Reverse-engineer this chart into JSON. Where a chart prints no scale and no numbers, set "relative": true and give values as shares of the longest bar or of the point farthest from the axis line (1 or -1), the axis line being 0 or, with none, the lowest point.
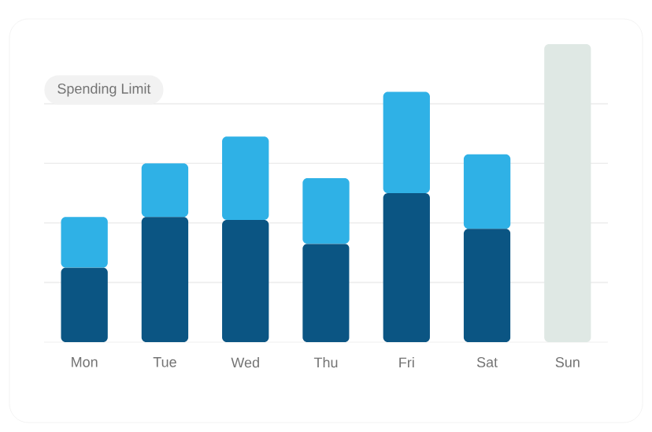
{
  "chart_data": {
    "type": "bar",
    "stacked": true,
    "relative": true,
    "grid": "y",
    "categories": [
      "Mon",
      "Tue",
      "Wed",
      "Thu",
      "Fri",
      "Sat",
      "Sun"
    ],
    "series": [
      {
        "color": "#0b5583",
        "values": [
          0.25,
          0.42,
          0.41,
          0.33,
          0.5,
          0.38,
          null
        ]
      },
      {
        "color": "#2fb1e6",
        "values": [
          0.17,
          0.18,
          0.28,
          0.22,
          0.34,
          0.25,
          null
        ]
      },
      {
        "color": "#dfe8e4",
        "values": [
          null,
          null,
          null,
          null,
          null,
          null,
          1.0
        ]
      }
    ],
    "annotations": [
      "Spending Limit"
    ]
  }
}
